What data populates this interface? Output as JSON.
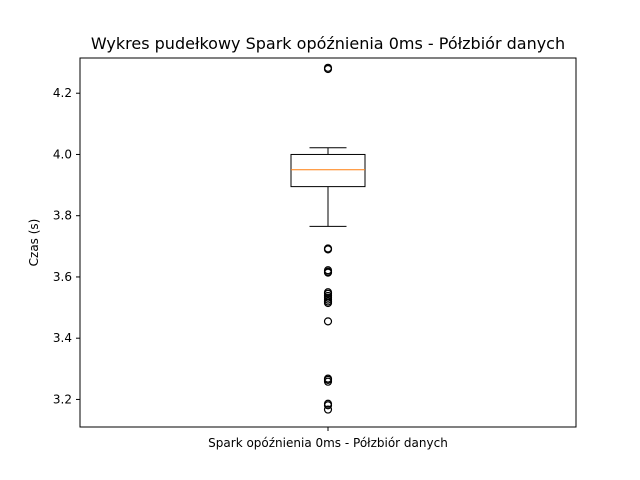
{
  "chart_data": {
    "type": "box",
    "title": "Wykres pudełkowy Spark opóźnienia 0ms - Półzbiór danych",
    "xlabel": "",
    "ylabel": "Czas (s)",
    "categories": [
      "Spark  opóźnienia 0ms - Półzbiór danych"
    ],
    "ylim": [
      3.11,
      4.315
    ],
    "yticks": [
      3.2,
      3.4,
      3.6,
      3.8,
      4.0,
      4.2
    ],
    "grid": false,
    "boxes": [
      {
        "category": "Spark  opóźnienia 0ms - Półzbiór danych",
        "whisker_low": 3.765,
        "q1": 3.895,
        "median": 3.95,
        "q3": 4.0,
        "whisker_high": 4.022,
        "outliers": [
          4.283,
          4.279,
          3.693,
          3.69,
          3.622,
          3.617,
          3.614,
          3.55,
          3.545,
          3.538,
          3.532,
          3.526,
          3.52,
          3.515,
          3.455,
          3.268,
          3.264,
          3.258,
          3.186,
          3.181,
          3.167
        ]
      }
    ],
    "colors": {
      "box": "#000000",
      "median": "#ff7f0e",
      "outlier": "#000000"
    }
  }
}
